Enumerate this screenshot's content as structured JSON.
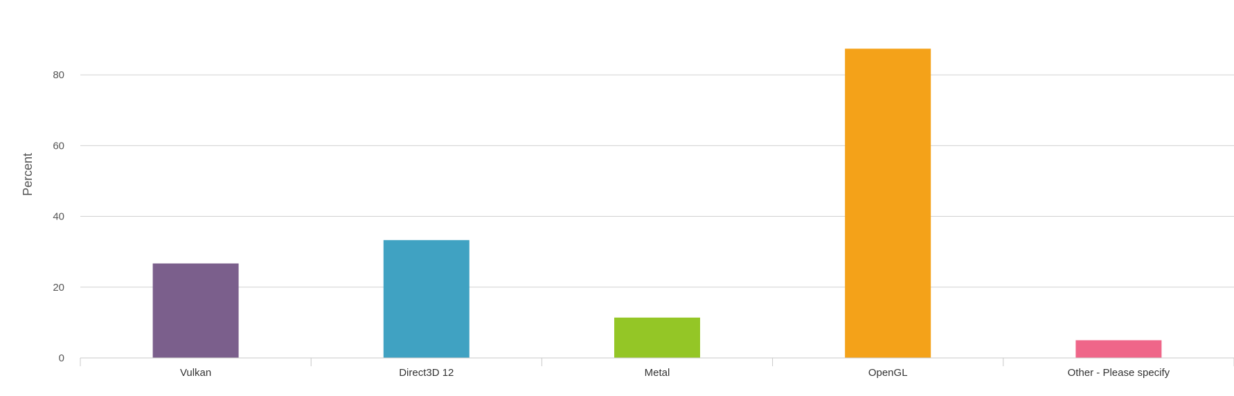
{
  "chart_data": {
    "type": "bar",
    "title": "",
    "xlabel": "",
    "ylabel": "Percent",
    "ylim": [
      0,
      90
    ],
    "yticks": [
      0,
      20,
      40,
      60,
      80
    ],
    "grid": true,
    "legend": "none",
    "categories": [
      "Vulkan",
      "Direct3D 12",
      "Metal",
      "OpenGL",
      "Other - Please specify"
    ],
    "values": [
      26.7,
      33.3,
      11.4,
      87.4,
      5.0
    ],
    "colors": [
      "#7b5f8c",
      "#40a2c2",
      "#94c626",
      "#f4a219",
      "#ef6689"
    ]
  }
}
